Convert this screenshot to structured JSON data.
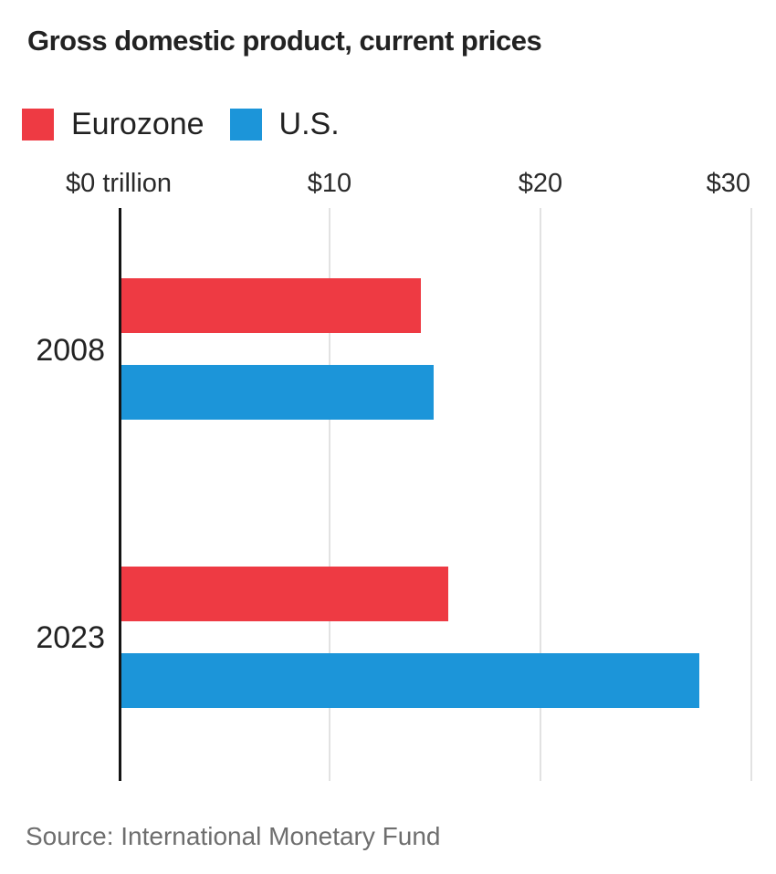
{
  "chart_data": {
    "type": "bar",
    "orientation": "horizontal",
    "title": "Gross domestic product, current prices",
    "categories": [
      "2008",
      "2023"
    ],
    "series": [
      {
        "name": "Eurozone",
        "color": "#ee3a43",
        "values": [
          14.2,
          15.5
        ]
      },
      {
        "name": "U.S.",
        "color": "#1c95d9",
        "values": [
          14.8,
          27.4
        ]
      }
    ],
    "x_axis": {
      "tick_labels": [
        "$0 trillion",
        "$10",
        "$20",
        "$30"
      ],
      "ticks": [
        0,
        10,
        20,
        30
      ],
      "max": 30,
      "unit": "trillion USD"
    },
    "grid": true,
    "legend_position": "top",
    "source": "Source: International Monetary Fund",
    "colors": {
      "eurozone_red": "#ee3a43",
      "us_blue": "#1c95d9",
      "gridline": "#e2e2e2",
      "axis": "#141414"
    }
  }
}
